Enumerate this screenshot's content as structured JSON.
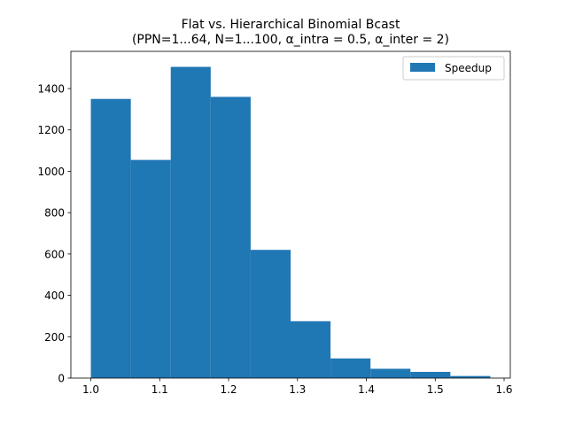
{
  "chart_data": {
    "type": "bar",
    "subtype": "histogram",
    "title": "Flat vs. Hierarchical Binomial Bcast",
    "subtitle": "(PPN=1...64, N=1...100, α_intra = 0.5, α_inter = 2)",
    "xlabel": "",
    "ylabel": "",
    "series": [
      {
        "name": "Speedup",
        "color": "#1f77b4",
        "bin_edges": [
          1.0,
          1.058,
          1.116,
          1.174,
          1.232,
          1.29,
          1.348,
          1.406,
          1.464,
          1.522,
          1.58
        ],
        "values": [
          1350,
          1055,
          1505,
          1360,
          620,
          275,
          95,
          45,
          30,
          10
        ]
      }
    ],
    "xlim": [
      0.971,
      1.609
    ],
    "ylim": [
      0,
      1580
    ],
    "xticks": [
      {
        "value": 1.0,
        "label": "1.0"
      },
      {
        "value": 1.1,
        "label": "1.1"
      },
      {
        "value": 1.2,
        "label": "1.2"
      },
      {
        "value": 1.3,
        "label": "1.3"
      },
      {
        "value": 1.4,
        "label": "1.4"
      },
      {
        "value": 1.5,
        "label": "1.5"
      },
      {
        "value": 1.6,
        "label": "1.6"
      }
    ],
    "yticks": [
      {
        "value": 0,
        "label": "0"
      },
      {
        "value": 200,
        "label": "200"
      },
      {
        "value": 400,
        "label": "400"
      },
      {
        "value": 600,
        "label": "600"
      },
      {
        "value": 800,
        "label": "800"
      },
      {
        "value": 1000,
        "label": "1000"
      },
      {
        "value": 1200,
        "label": "1200"
      },
      {
        "value": 1400,
        "label": "1400"
      }
    ],
    "grid": false,
    "legend_position": "top-right"
  }
}
